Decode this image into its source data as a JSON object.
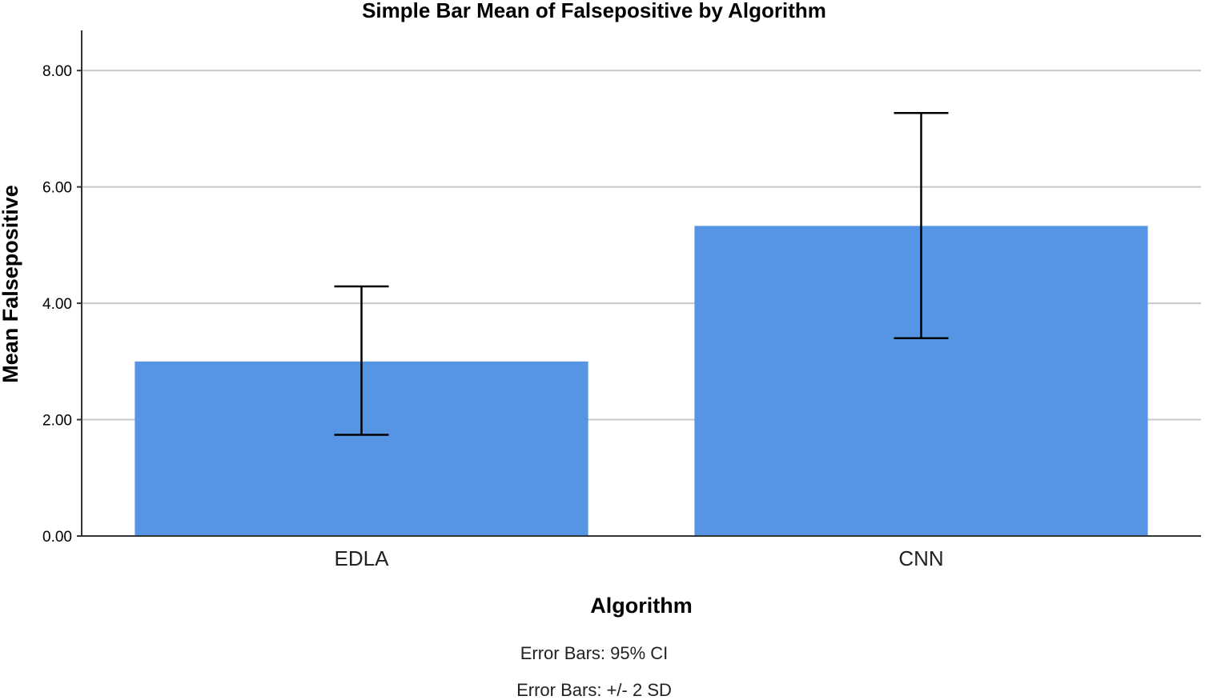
{
  "chart_data": {
    "type": "bar",
    "title": "Simple Bar Mean of Falsepositive by Algorithm",
    "xlabel": "Algorithm",
    "ylabel": "Mean Falsepositive",
    "categories": [
      "EDLA",
      "CNN"
    ],
    "values": [
      3.0,
      5.33
    ],
    "error_bars": [
      {
        "low": 1.74,
        "high": 4.29
      },
      {
        "low": 3.4,
        "high": 7.27
      }
    ],
    "ylim": [
      0,
      8.8
    ],
    "yticks": [
      0,
      2,
      4,
      6,
      8
    ],
    "ytick_labels": [
      "0.00",
      "2.00",
      "4.00",
      "6.00",
      "8.00"
    ],
    "grid": true,
    "notes": [
      "Error Bars: 95% CI",
      "Error Bars: +/- 2 SD"
    ],
    "colors": {
      "bar": "#5595e3",
      "grid": "#c8c8c8",
      "axis": "#333333",
      "error_bar": "#000000"
    }
  }
}
